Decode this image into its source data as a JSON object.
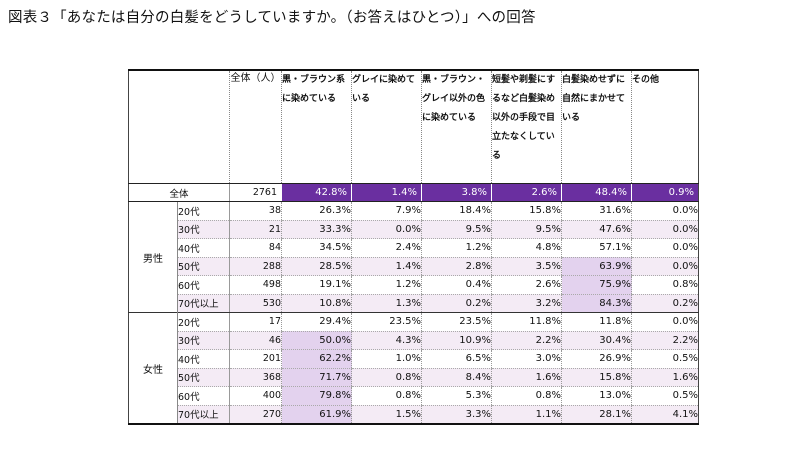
{
  "title": "図表３「あなたは自分の白髪をどうしていますか。（お答えはひとつ）」への回答",
  "table": {
    "total_header": "全体（人）",
    "columns": [
      "黒・ブラウン系に染めている",
      "グレイに染めている",
      "黒・ブラウン・グレイ以外の色に染めている",
      "短髪や剃髪にするなど白髪染め以外の手段で目立たなくしている",
      "白髪染めせずに自然にまかせている",
      "その他"
    ],
    "overall": {
      "label": "全体",
      "n": "2761",
      "values": [
        "42.8%",
        "1.4%",
        "3.8%",
        "2.6%",
        "48.4%",
        "0.9%"
      ]
    },
    "groups": [
      {
        "label": "男性",
        "rows": [
          {
            "age": "20代",
            "n": "38",
            "values": [
              "26.3%",
              "7.9%",
              "18.4%",
              "15.8%",
              "31.6%",
              "0.0%"
            ]
          },
          {
            "age": "30代",
            "n": "21",
            "values": [
              "33.3%",
              "0.0%",
              "9.5%",
              "9.5%",
              "47.6%",
              "0.0%"
            ]
          },
          {
            "age": "40代",
            "n": "84",
            "values": [
              "34.5%",
              "2.4%",
              "1.2%",
              "4.8%",
              "57.1%",
              "0.0%"
            ]
          },
          {
            "age": "50代",
            "n": "288",
            "values": [
              "28.5%",
              "1.4%",
              "2.8%",
              "3.5%",
              "63.9%",
              "0.0%"
            ]
          },
          {
            "age": "60代",
            "n": "498",
            "values": [
              "19.1%",
              "1.2%",
              "0.4%",
              "2.6%",
              "75.9%",
              "0.8%"
            ]
          },
          {
            "age": "70代以上",
            "n": "530",
            "values": [
              "10.8%",
              "1.3%",
              "0.2%",
              "3.2%",
              "84.3%",
              "0.2%"
            ]
          }
        ]
      },
      {
        "label": "女性",
        "rows": [
          {
            "age": "20代",
            "n": "17",
            "values": [
              "29.4%",
              "23.5%",
              "23.5%",
              "11.8%",
              "11.8%",
              "0.0%"
            ]
          },
          {
            "age": "30代",
            "n": "46",
            "values": [
              "50.0%",
              "4.3%",
              "10.9%",
              "2.2%",
              "30.4%",
              "2.2%"
            ]
          },
          {
            "age": "40代",
            "n": "201",
            "values": [
              "62.2%",
              "1.0%",
              "6.5%",
              "3.0%",
              "26.9%",
              "0.5%"
            ]
          },
          {
            "age": "50代",
            "n": "368",
            "values": [
              "71.7%",
              "0.8%",
              "8.4%",
              "1.6%",
              "15.8%",
              "1.6%"
            ]
          },
          {
            "age": "60代",
            "n": "400",
            "values": [
              "79.8%",
              "0.8%",
              "5.3%",
              "0.8%",
              "13.0%",
              "0.5%"
            ]
          },
          {
            "age": "70代以上",
            "n": "270",
            "values": [
              "61.9%",
              "1.5%",
              "3.3%",
              "1.1%",
              "28.1%",
              "4.1%"
            ]
          }
        ]
      }
    ]
  },
  "colors": {
    "overall_row_bg": "#6a2fa0",
    "alt_row_bg": "#f4ebf5",
    "highlight_bg": "#e3d2ee"
  }
}
